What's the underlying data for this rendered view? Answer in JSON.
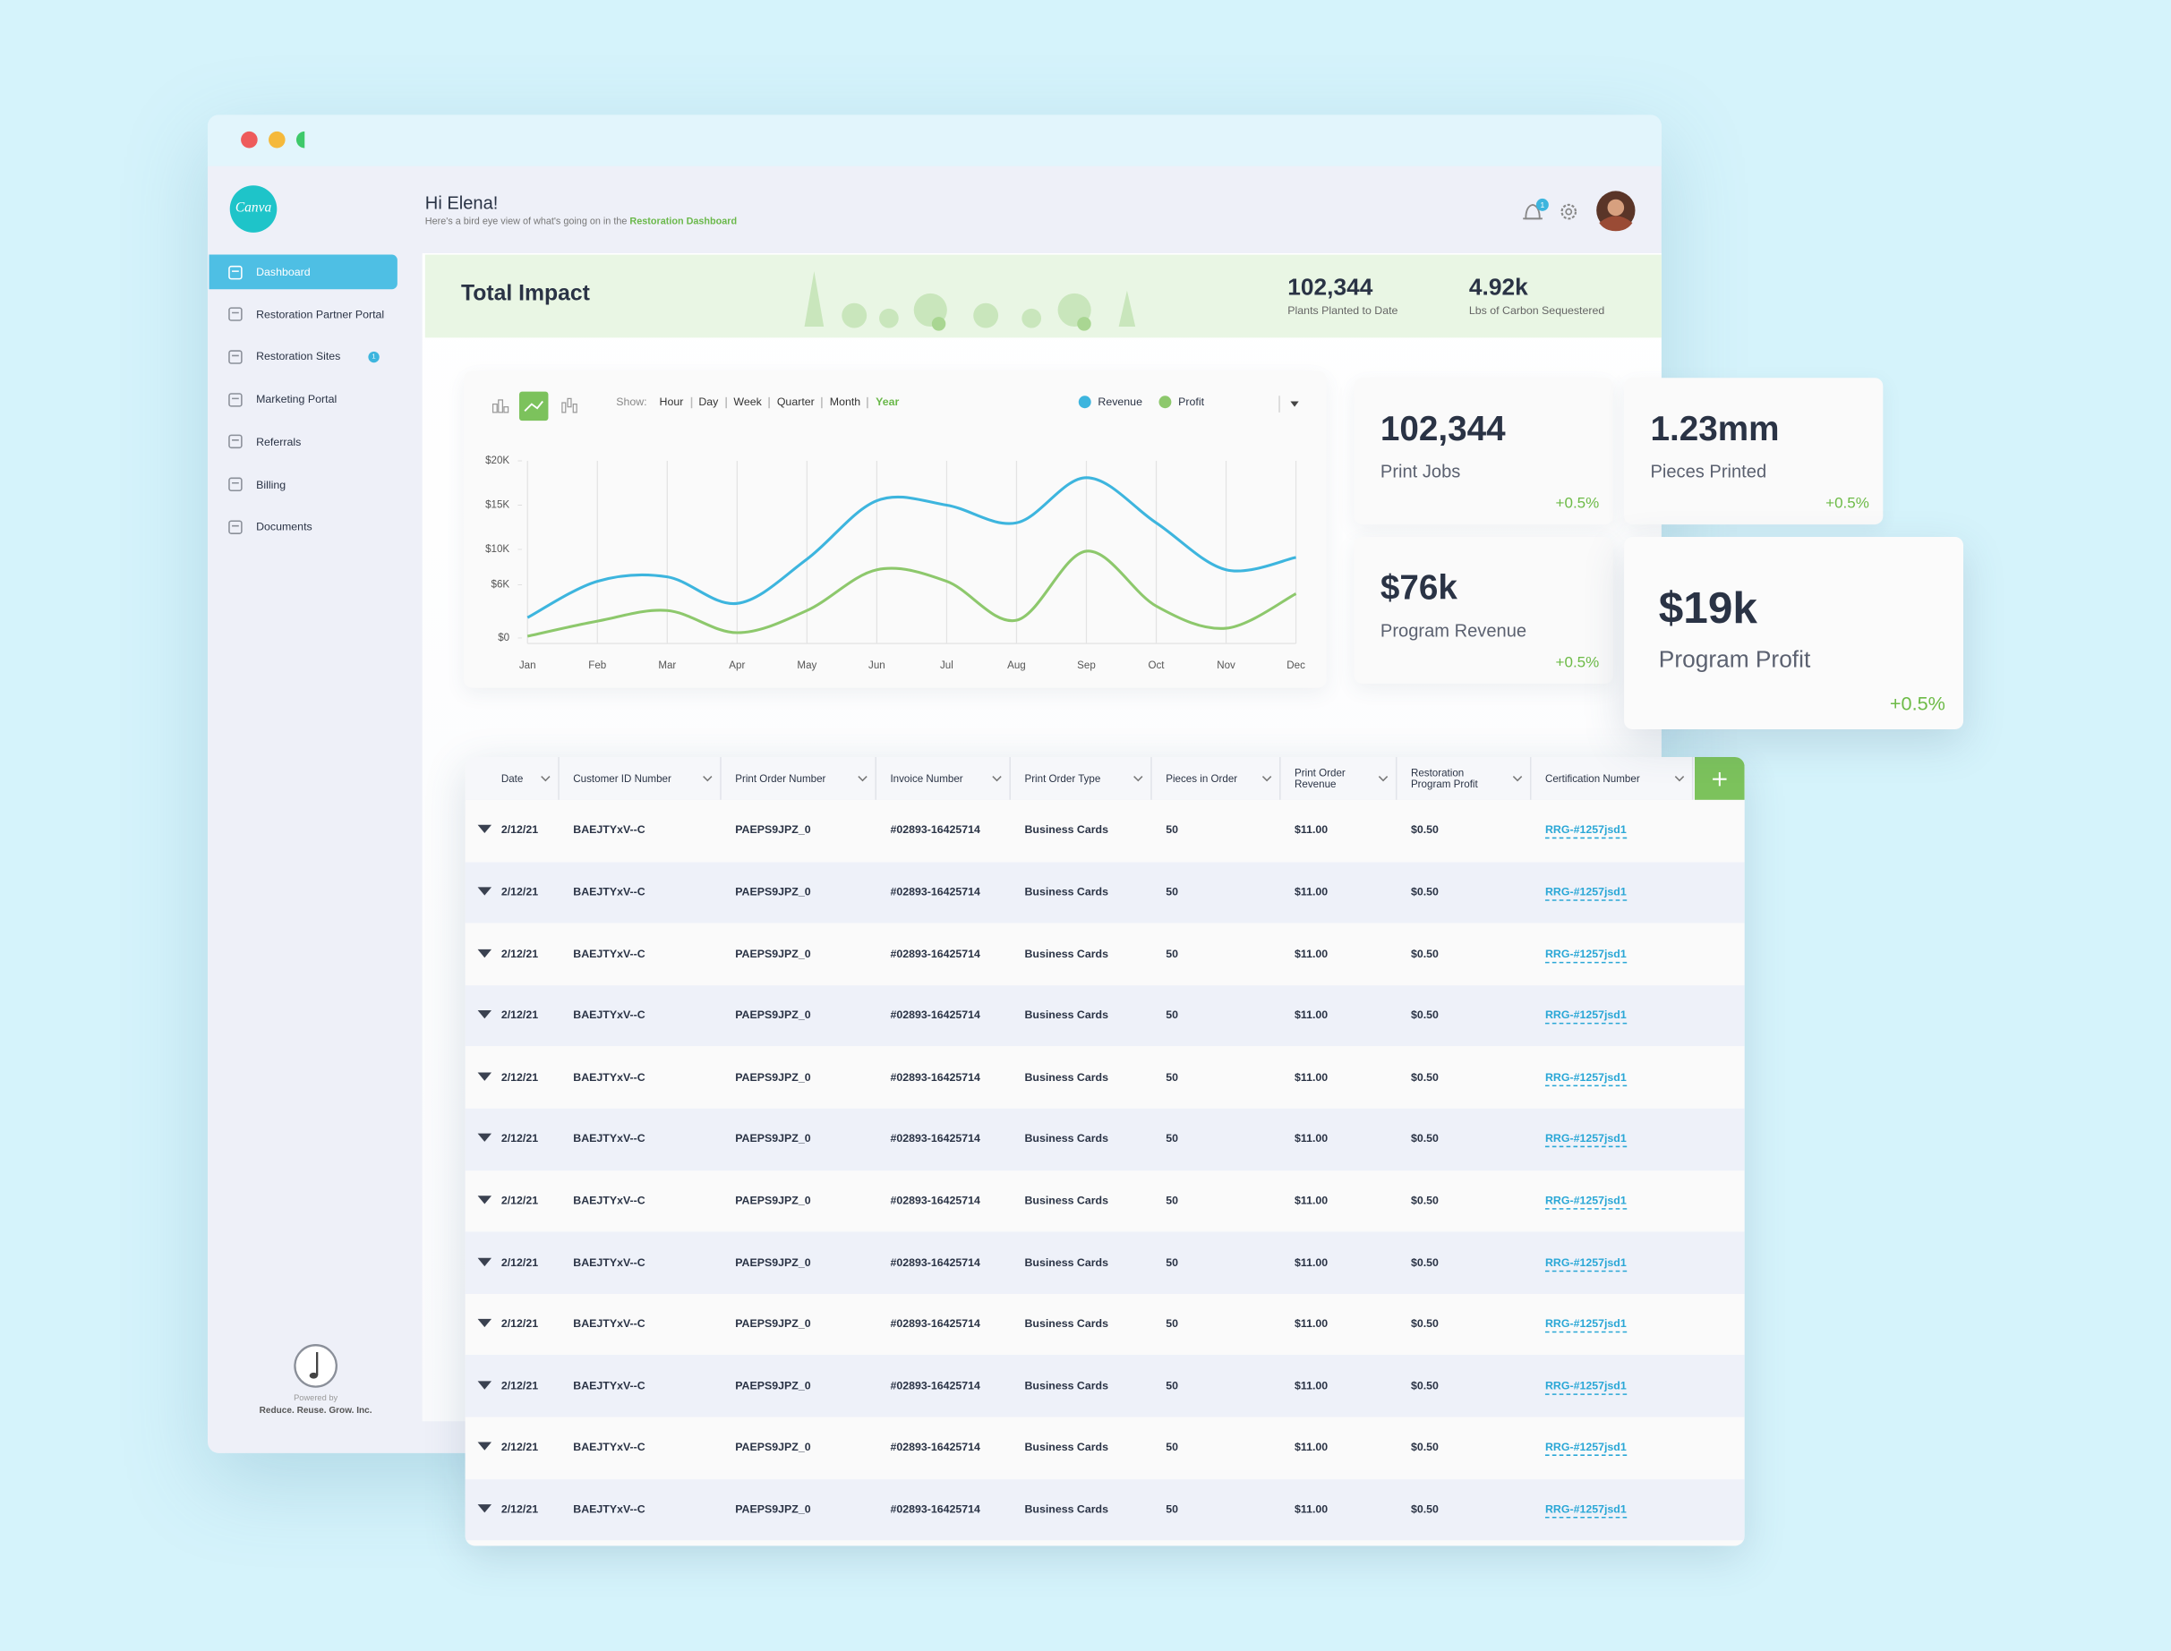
{
  "sidebar": {
    "logo": "Canva",
    "active": 0,
    "nav": [
      {
        "label": "Dashboard"
      },
      {
        "label": "Restoration Partner Portal"
      },
      {
        "label": "Restoration Sites",
        "badge": 1
      },
      {
        "label": "Marketing Portal"
      },
      {
        "label": "Referrals"
      },
      {
        "label": "Billing"
      },
      {
        "label": "Documents"
      }
    ],
    "footer": {
      "powered_by": "Powered by",
      "company": "Reduce. Reuse. Grow. Inc."
    }
  },
  "header": {
    "greeting": "Hi Elena!",
    "subtitle": "Here's a bird eye view of what's going on in the",
    "subtitle_link": "Restoration Dashboard",
    "notifications": 1
  },
  "impact": {
    "title": "Total Impact",
    "stats": [
      {
        "value": "102,344",
        "label": "Plants Planted to Date"
      },
      {
        "value": "4.92k",
        "label": "Lbs of Carbon Sequestered"
      }
    ]
  },
  "chart": {
    "type": "line",
    "show_label": "Show:",
    "periods": [
      "Hour",
      "Day",
      "Week",
      "Quarter",
      "Month",
      "Year"
    ],
    "selected_period": 5,
    "categories": [
      "Jan",
      "Feb",
      "Mar",
      "Apr",
      "May",
      "Jun",
      "Jul",
      "Aug",
      "Sep",
      "Oct",
      "Nov",
      "Dec"
    ],
    "series": [
      {
        "name": "Revenue",
        "color": "#3db5de",
        "values": [
          2300,
          6400,
          6900,
          3900,
          8900,
          15500,
          15000,
          13000,
          18100,
          13000,
          7700,
          9100
        ]
      },
      {
        "name": "Profit",
        "color": "#8dc86c",
        "values": [
          200,
          1900,
          3100,
          600,
          3100,
          7700,
          6400,
          2000,
          9800,
          3600,
          1100,
          5000
        ]
      }
    ],
    "ylim": [
      0,
      20000
    ],
    "yticks": [
      {
        "value": 0,
        "label": "$0"
      },
      {
        "value": 6000,
        "label": "$6K"
      },
      {
        "value": 10000,
        "label": "$10K"
      },
      {
        "value": 15000,
        "label": "$15K"
      },
      {
        "value": 20000,
        "label": "$20K"
      }
    ],
    "grid": true
  },
  "kpis": [
    {
      "value": "102,344",
      "label": "Print Jobs",
      "change": "+0.5%"
    },
    {
      "value": "1.23mm",
      "label": "Pieces Printed",
      "change": "+0.5%"
    },
    {
      "value": "$76k",
      "label": "Program Revenue",
      "change": "+0.5%"
    },
    {
      "value": "$19k",
      "label": "Program Profit",
      "change": "+0.5%"
    }
  ],
  "table": {
    "columns": [
      "Date",
      "Customer ID Number",
      "Print Order Number",
      "Invoice Number",
      "Print Order Type",
      "Pieces in Order",
      "Print Order Revenue",
      "Restoration Program Profit",
      "Certification Number"
    ],
    "rows": [
      [
        "2/12/21",
        "BAEJTYxV--C",
        "PAEPS9JPZ_0",
        "#02893-16425714",
        "Business Cards",
        50,
        "$11.00",
        "$0.50",
        "RRG-#1257jsd1"
      ],
      [
        "2/12/21",
        "BAEJTYxV--C",
        "PAEPS9JPZ_0",
        "#02893-16425714",
        "Business Cards",
        50,
        "$11.00",
        "$0.50",
        "RRG-#1257jsd1"
      ],
      [
        "2/12/21",
        "BAEJTYxV--C",
        "PAEPS9JPZ_0",
        "#02893-16425714",
        "Business Cards",
        50,
        "$11.00",
        "$0.50",
        "RRG-#1257jsd1"
      ],
      [
        "2/12/21",
        "BAEJTYxV--C",
        "PAEPS9JPZ_0",
        "#02893-16425714",
        "Business Cards",
        50,
        "$11.00",
        "$0.50",
        "RRG-#1257jsd1"
      ],
      [
        "2/12/21",
        "BAEJTYxV--C",
        "PAEPS9JPZ_0",
        "#02893-16425714",
        "Business Cards",
        50,
        "$11.00",
        "$0.50",
        "RRG-#1257jsd1"
      ],
      [
        "2/12/21",
        "BAEJTYxV--C",
        "PAEPS9JPZ_0",
        "#02893-16425714",
        "Business Cards",
        50,
        "$11.00",
        "$0.50",
        "RRG-#1257jsd1"
      ],
      [
        "2/12/21",
        "BAEJTYxV--C",
        "PAEPS9JPZ_0",
        "#02893-16425714",
        "Business Cards",
        50,
        "$11.00",
        "$0.50",
        "RRG-#1257jsd1"
      ],
      [
        "2/12/21",
        "BAEJTYxV--C",
        "PAEPS9JPZ_0",
        "#02893-16425714",
        "Business Cards",
        50,
        "$11.00",
        "$0.50",
        "RRG-#1257jsd1"
      ],
      [
        "2/12/21",
        "BAEJTYxV--C",
        "PAEPS9JPZ_0",
        "#02893-16425714",
        "Business Cards",
        50,
        "$11.00",
        "$0.50",
        "RRG-#1257jsd1"
      ],
      [
        "2/12/21",
        "BAEJTYxV--C",
        "PAEPS9JPZ_0",
        "#02893-16425714",
        "Business Cards",
        50,
        "$11.00",
        "$0.50",
        "RRG-#1257jsd1"
      ],
      [
        "2/12/21",
        "BAEJTYxV--C",
        "PAEPS9JPZ_0",
        "#02893-16425714",
        "Business Cards",
        50,
        "$11.00",
        "$0.50",
        "RRG-#1257jsd1"
      ],
      [
        "2/12/21",
        "BAEJTYxV--C",
        "PAEPS9JPZ_0",
        "#02893-16425714",
        "Business Cards",
        50,
        "$11.00",
        "$0.50",
        "RRG-#1257jsd1"
      ]
    ]
  }
}
